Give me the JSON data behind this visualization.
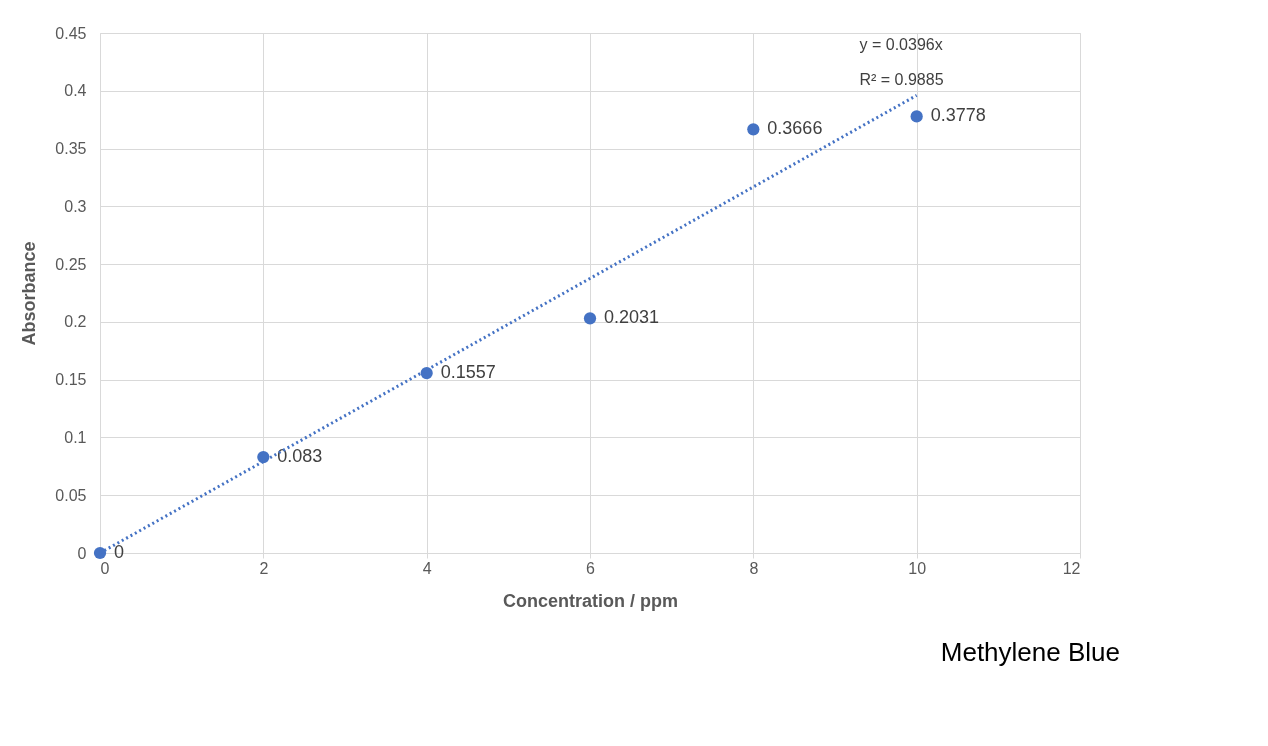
{
  "chart_data": {
    "type": "scatter",
    "xlabel": "Concentration / ppm",
    "ylabel": "Absorbance",
    "x": [
      0,
      2,
      4,
      6,
      8,
      10
    ],
    "series": [
      {
        "type": "scatter",
        "color": "#4472c4",
        "marker": "circle",
        "values": [
          0,
          0.083,
          0.1557,
          0.2031,
          0.3666,
          0.3778
        ],
        "value_labels": [
          "0",
          "0.083",
          "0.1557",
          "0.2031",
          "0.3666",
          "0.3778"
        ]
      },
      {
        "type": "line",
        "color": "#4472c4",
        "marker": "none",
        "line_style": "dotted",
        "x": [
          0,
          10
        ],
        "values": [
          0,
          0.396
        ]
      }
    ],
    "annotations": [
      "y = 0.0396x",
      "R² = 0.9885",
      "Methylene Blue"
    ],
    "xlim": [
      0,
      12
    ],
    "xticks": [
      0,
      2,
      4,
      6,
      8,
      10,
      12
    ],
    "ylim": [
      0,
      0.45
    ],
    "yticks": [
      0,
      0.05,
      0.1,
      0.15,
      0.2,
      0.25,
      0.3,
      0.35,
      0.4,
      0.45
    ],
    "grid": true
  }
}
